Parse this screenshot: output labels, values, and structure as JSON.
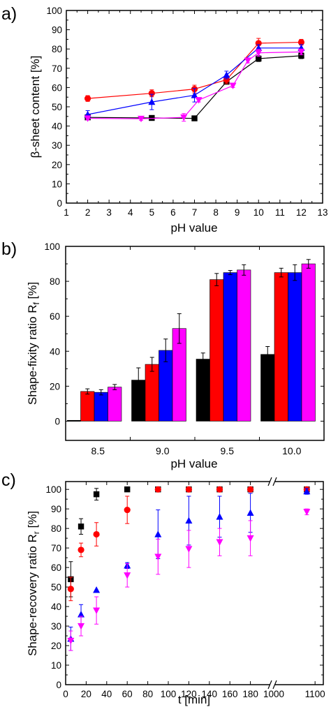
{
  "colors": {
    "black": "#000000",
    "red": "#ff0000",
    "blue": "#0000ff",
    "magenta": "#ff00ff",
    "line_gray": "#999999"
  },
  "chart_data": [
    {
      "panel_label": "a)",
      "type": "line",
      "xlabel": "pH value",
      "ylabel": "β-sheet content [%]",
      "xlim": [
        1,
        13
      ],
      "ylim": [
        0,
        100
      ],
      "x_ticks": [
        1,
        2,
        3,
        4,
        5,
        6,
        7,
        8,
        9,
        10,
        11,
        12,
        13
      ],
      "y_ticks": [
        0,
        10,
        20,
        30,
        40,
        50,
        60,
        70,
        80,
        90,
        100
      ],
      "grid": false,
      "series": [
        {
          "color": "#000000",
          "marker": "square",
          "points": [
            [
              2,
              44.5
            ],
            [
              5,
              44.2
            ],
            [
              7,
              44.0
            ],
            [
              8.5,
              63.0
            ],
            [
              10,
              75.0
            ],
            [
              12,
              76.5
            ]
          ],
          "err": [
            0.8,
            0.8,
            0.8,
            1.2,
            1.5,
            1.5
          ]
        },
        {
          "color": "#ff0000",
          "marker": "circle",
          "points": [
            [
              2,
              54.3
            ],
            [
              5,
              57.0
            ],
            [
              7,
              59.2
            ],
            [
              8.5,
              64.0
            ],
            [
              10,
              83.0
            ],
            [
              12,
              83.5
            ]
          ],
          "err": [
            1.5,
            1.8,
            2.0,
            2.0,
            2.5,
            1.5
          ]
        },
        {
          "color": "#0000ff",
          "marker": "triangle-up",
          "points": [
            [
              2,
              46.0
            ],
            [
              5,
              52.5
            ],
            [
              7,
              56.0
            ],
            [
              8.5,
              66.5
            ],
            [
              10,
              80.5
            ],
            [
              12,
              80.5
            ]
          ],
          "err": [
            2.0,
            4.0,
            3.5,
            2.0,
            1.8,
            1.8
          ]
        },
        {
          "color": "#ff00ff",
          "marker": "triangle-down",
          "points": [
            [
              2,
              44.0
            ],
            [
              4.5,
              43.8
            ],
            [
              6.5,
              44.5
            ],
            [
              7.2,
              53.5
            ],
            [
              8.8,
              61.0
            ],
            [
              9.5,
              74.0
            ],
            [
              10,
              78.0
            ],
            [
              12,
              78.5
            ]
          ],
          "err": [
            0.8,
            0.8,
            2.0,
            1.0,
            1.0,
            1.2,
            1.8,
            1.5
          ]
        }
      ]
    },
    {
      "panel_label": "b)",
      "type": "bar",
      "xlabel": "pH value",
      "ylabel": "Shape-fixity ratio R",
      "ylabel_sub": "f",
      "ylabel_unit": " [%]",
      "categories": [
        "8.5",
        "9.0",
        "9.5",
        "10.0"
      ],
      "ylim": [
        -11,
        100
      ],
      "y_ticks": [
        0,
        20,
        40,
        60,
        80,
        100
      ],
      "grid": false,
      "series": [
        {
          "color": "#000000",
          "values": [
            0.0,
            23.5,
            35.5,
            38.2
          ],
          "err": [
            0.0,
            7.0,
            3.5,
            4.5
          ]
        },
        {
          "color": "#ff0000",
          "values": [
            17.0,
            32.5,
            81.0,
            85.0
          ],
          "err": [
            1.5,
            4.0,
            3.5,
            2.5
          ]
        },
        {
          "color": "#0000ff",
          "values": [
            16.5,
            40.5,
            85.0,
            85.0
          ],
          "err": [
            1.5,
            6.5,
            1.2,
            4.5
          ]
        },
        {
          "color": "#ff00ff",
          "values": [
            19.5,
            53.0,
            86.5,
            90.0
          ],
          "err": [
            1.5,
            8.5,
            3.0,
            2.5
          ]
        }
      ]
    },
    {
      "panel_label": "c)",
      "type": "scatter",
      "xlabel": "t [min]",
      "ylabel": "Shape-recovery ratio R",
      "ylabel_sub": "r",
      "ylabel_unit": " [%]",
      "xlim_left": [
        0,
        200
      ],
      "xlim_right": [
        1000,
        1120
      ],
      "ylim": [
        0,
        104
      ],
      "x_ticks_left": [
        0,
        20,
        40,
        60,
        80,
        100,
        120,
        140,
        160,
        180
      ],
      "x_ticks_right": [
        1000,
        1100
      ],
      "y_ticks": [
        0,
        10,
        20,
        30,
        40,
        50,
        60,
        70,
        80,
        90,
        100
      ],
      "axis_break": true,
      "grid": false,
      "series": [
        {
          "color": "#000000",
          "marker": "square",
          "points": [
            [
              5,
              54
            ],
            [
              15,
              81
            ],
            [
              30,
              97.5
            ],
            [
              60,
              100
            ],
            [
              90,
              100
            ],
            [
              120,
              100
            ],
            [
              150,
              100
            ],
            [
              180,
              100
            ],
            [
              1080,
              100
            ]
          ],
          "err": [
            9,
            4,
            3,
            0,
            0,
            0,
            0,
            0,
            0
          ]
        },
        {
          "color": "#ff0000",
          "marker": "circle",
          "points": [
            [
              5,
              49
            ],
            [
              15,
              69
            ],
            [
              30,
              77
            ],
            [
              60,
              89.5
            ],
            [
              90,
              100
            ],
            [
              120,
              100
            ],
            [
              150,
              100
            ],
            [
              180,
              100
            ],
            [
              1080,
              100
            ]
          ],
          "err": [
            6,
            3.5,
            6,
            7,
            0,
            0,
            0,
            0,
            0
          ]
        },
        {
          "color": "#0000ff",
          "marker": "triangle-up",
          "points": [
            [
              5,
              23.5
            ],
            [
              15,
              36
            ],
            [
              30,
              48.5
            ],
            [
              60,
              61
            ],
            [
              90,
              77
            ],
            [
              120,
              84
            ],
            [
              150,
              86
            ],
            [
              180,
              88
            ],
            [
              1080,
              99
            ]
          ],
          "err": [
            6,
            5,
            0,
            1.5,
            12.5,
            12.5,
            10.5,
            10,
            1.5
          ]
        },
        {
          "color": "#ff00ff",
          "marker": "triangle-down",
          "points": [
            [
              5,
              22.5
            ],
            [
              15,
              30
            ],
            [
              30,
              38
            ],
            [
              60,
              56
            ],
            [
              90,
              65.5
            ],
            [
              120,
              69.5
            ],
            [
              150,
              73
            ],
            [
              180,
              75
            ],
            [
              1080,
              88.5
            ]
          ],
          "err": [
            5,
            5,
            7,
            6,
            9,
            9.5,
            7,
            9,
            1.5
          ]
        }
      ]
    }
  ]
}
